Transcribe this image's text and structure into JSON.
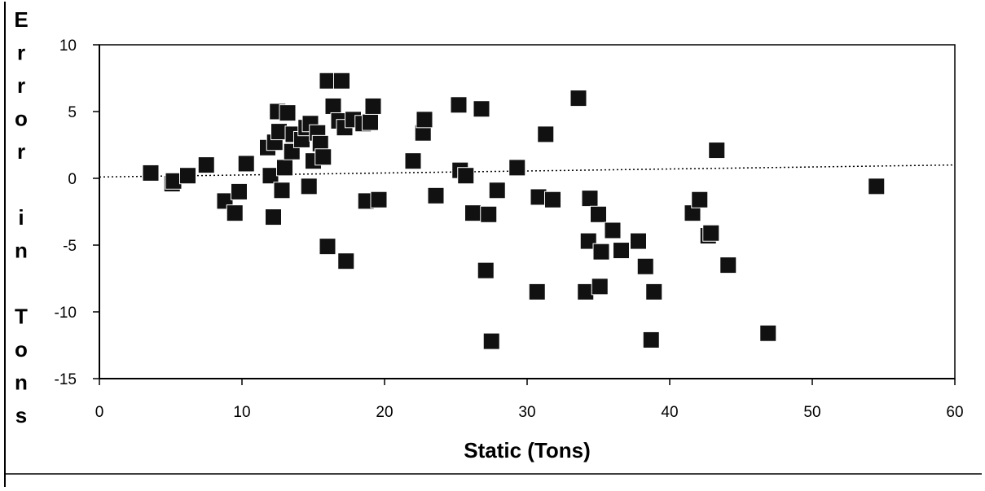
{
  "chart_data": {
    "type": "scatter",
    "xlabel": "Static (Tons)",
    "ylabel": "Error in Tons",
    "xlim": [
      0,
      60
    ],
    "ylim": [
      -15,
      10
    ],
    "xticks": [
      "0",
      "10",
      "20",
      "30",
      "40",
      "50",
      "60"
    ],
    "yticks": [
      "10",
      "5",
      "0",
      "-5",
      "-10",
      "-15"
    ],
    "grid": false,
    "marker": "filled-square",
    "marker_color": "#111111",
    "trendline": {
      "style": "dotted",
      "from": [
        0,
        0.1
      ],
      "to": [
        60,
        1.0
      ]
    },
    "series": [
      {
        "points": [
          [
            3.6,
            0.4
          ],
          [
            5.1,
            -0.4
          ],
          [
            5.2,
            -0.2
          ],
          [
            6.2,
            0.2
          ],
          [
            7.5,
            1.0
          ],
          [
            8.8,
            -1.7
          ],
          [
            9.5,
            -2.6
          ],
          [
            9.8,
            -1.0
          ],
          [
            10.3,
            1.1
          ],
          [
            11.8,
            2.3
          ],
          [
            12.0,
            0.2
          ],
          [
            12.2,
            -2.9
          ],
          [
            12.3,
            2.7
          ],
          [
            12.5,
            5.0
          ],
          [
            12.6,
            3.5
          ],
          [
            12.8,
            -0.9
          ],
          [
            13.0,
            0.8
          ],
          [
            13.2,
            4.9
          ],
          [
            13.5,
            2.0
          ],
          [
            13.6,
            3.3
          ],
          [
            14.2,
            2.9
          ],
          [
            14.5,
            3.8
          ],
          [
            14.7,
            -0.6
          ],
          [
            14.8,
            4.1
          ],
          [
            15.0,
            1.3
          ],
          [
            15.3,
            3.4
          ],
          [
            15.5,
            2.6
          ],
          [
            15.7,
            1.6
          ],
          [
            16.0,
            7.3
          ],
          [
            16.0,
            -5.1
          ],
          [
            16.4,
            5.4
          ],
          [
            16.8,
            4.3
          ],
          [
            17.0,
            7.3
          ],
          [
            17.2,
            3.8
          ],
          [
            17.3,
            -6.2
          ],
          [
            17.8,
            4.4
          ],
          [
            18.5,
            4.1
          ],
          [
            18.7,
            -1.7
          ],
          [
            19.0,
            4.2
          ],
          [
            19.2,
            5.4
          ],
          [
            19.6,
            -1.6
          ],
          [
            22.0,
            1.3
          ],
          [
            22.7,
            3.4
          ],
          [
            22.8,
            4.4
          ],
          [
            23.6,
            -1.3
          ],
          [
            25.2,
            5.5
          ],
          [
            25.3,
            0.6
          ],
          [
            25.7,
            0.2
          ],
          [
            26.2,
            -2.6
          ],
          [
            26.8,
            5.2
          ],
          [
            27.1,
            -6.9
          ],
          [
            27.3,
            -2.7
          ],
          [
            27.5,
            -12.2
          ],
          [
            27.9,
            -0.9
          ],
          [
            29.3,
            0.8
          ],
          [
            30.7,
            -8.5
          ],
          [
            30.8,
            -1.4
          ],
          [
            31.3,
            3.3
          ],
          [
            31.8,
            -1.6
          ],
          [
            33.6,
            6.0
          ],
          [
            34.1,
            -8.5
          ],
          [
            34.3,
            -4.7
          ],
          [
            34.4,
            -1.5
          ],
          [
            35.0,
            -2.7
          ],
          [
            35.1,
            -8.1
          ],
          [
            35.2,
            -5.5
          ],
          [
            36.0,
            -3.9
          ],
          [
            36.6,
            -5.4
          ],
          [
            37.8,
            -4.7
          ],
          [
            38.3,
            -6.6
          ],
          [
            38.7,
            -12.1
          ],
          [
            38.9,
            -8.5
          ],
          [
            41.6,
            -2.6
          ],
          [
            42.1,
            -1.6
          ],
          [
            42.7,
            -4.3
          ],
          [
            42.9,
            -4.1
          ],
          [
            43.3,
            2.1
          ],
          [
            44.1,
            -6.5
          ],
          [
            46.9,
            -11.6
          ],
          [
            54.5,
            -0.6
          ]
        ]
      }
    ]
  }
}
